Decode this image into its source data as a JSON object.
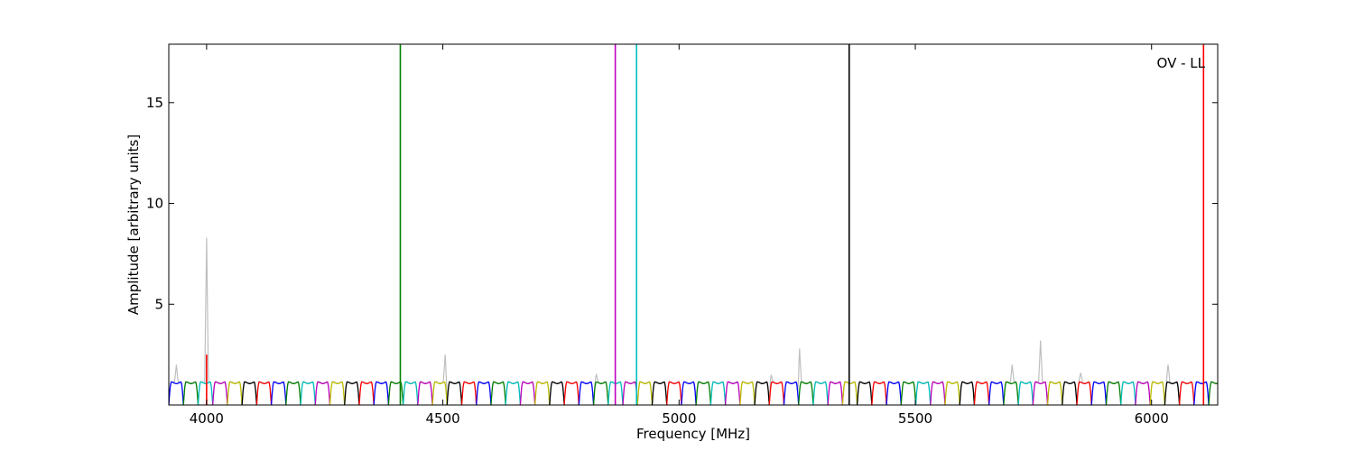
{
  "chart_data": {
    "type": "line",
    "title": "",
    "xlabel": "Frequency [MHz]",
    "ylabel": "Amplitude [arbitrary units]",
    "annotation": "OV - LL",
    "xlim": [
      3920,
      6140
    ],
    "ylim": [
      0,
      17.9
    ],
    "xticks": [
      4000,
      4500,
      5000,
      5500,
      6000
    ],
    "yticks": [
      5,
      10,
      15
    ],
    "grid": false,
    "legend": "none",
    "channel_cycle_colors": [
      "#0000ff",
      "#008000",
      "#00bfbf",
      "#bf00bf",
      "#bfbf00",
      "#000000",
      "#ff0000"
    ],
    "background_trace": {
      "color": "#bfbfbf",
      "peaks": [
        {
          "x": 3936,
          "y": 2.0
        },
        {
          "x": 4000,
          "y": 8.3
        },
        {
          "x": 4505,
          "y": 2.5
        },
        {
          "x": 4825,
          "y": 1.5
        },
        {
          "x": 5195,
          "y": 1.5
        },
        {
          "x": 5255,
          "y": 2.8
        },
        {
          "x": 5705,
          "y": 2.0
        },
        {
          "x": 5765,
          "y": 3.2
        },
        {
          "x": 5850,
          "y": 1.6
        },
        {
          "x": 6035,
          "y": 2.0
        }
      ]
    },
    "band_channels": {
      "start": 3920,
      "end": 6140,
      "width_mhz": 31,
      "plateau": 1.1
    },
    "spikes": [
      {
        "x": 4000,
        "y": 2.5,
        "color": "#ff0000"
      },
      {
        "x": 4410,
        "y": 17.9,
        "color": "#008000"
      },
      {
        "x": 4865,
        "y": 17.9,
        "color": "#bf00bf"
      },
      {
        "x": 4910,
        "y": 17.9,
        "color": "#00bfbf"
      },
      {
        "x": 5360,
        "y": 17.9,
        "color": "#000000"
      },
      {
        "x": 6110,
        "y": 17.9,
        "color": "#ff0000"
      }
    ]
  }
}
